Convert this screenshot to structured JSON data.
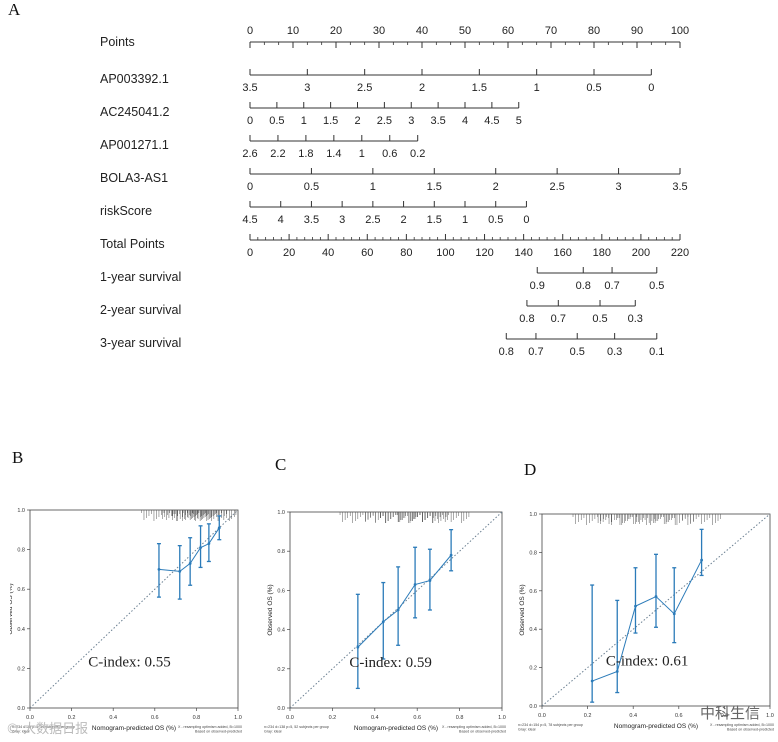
{
  "panels": {
    "a": "A",
    "b": "B",
    "c": "C",
    "d": "D"
  },
  "chart_data": [
    {
      "type": "nomogram",
      "rows": [
        {
          "label": "Points",
          "ticks": [
            "0",
            "10",
            "20",
            "30",
            "40",
            "50",
            "60",
            "70",
            "80",
            "90",
            "100"
          ],
          "values": [
            0,
            10,
            20,
            30,
            40,
            50,
            60,
            70,
            80,
            90,
            100
          ],
          "minor": 2,
          "above": true
        },
        {
          "label": "AP003392.1",
          "ticks": [
            "3.5",
            "3",
            "2.5",
            "2",
            "1.5",
            "1",
            "0.5",
            "0"
          ],
          "values": [
            0,
            13.333,
            26.667,
            40,
            53.333,
            66.667,
            80,
            93.333
          ]
        },
        {
          "label": "AC245041.2",
          "ticks": [
            "0",
            "0.5",
            "1",
            "1.5",
            "2",
            "2.5",
            "3",
            "3.5",
            "4",
            "4.5",
            "5"
          ],
          "values": [
            0,
            6.25,
            12.5,
            18.75,
            25,
            31.25,
            37.5,
            43.75,
            50,
            56.25,
            62.5
          ]
        },
        {
          "label": "AP001271.1",
          "ticks": [
            "2.6",
            "2.2",
            "1.8",
            "1.4",
            "1",
            "0.6",
            "0.2"
          ],
          "values": [
            0,
            6.5,
            13,
            19.5,
            26,
            32.5,
            39
          ]
        },
        {
          "label": "BOLA3-AS1",
          "ticks": [
            "0",
            "0.5",
            "1",
            "1.5",
            "2",
            "2.5",
            "3",
            "3.5"
          ],
          "values": [
            0,
            14.286,
            28.571,
            42.857,
            57.143,
            71.429,
            85.714,
            100
          ]
        },
        {
          "label": "riskScore",
          "ticks": [
            "4.5",
            "4",
            "3.5",
            "3",
            "2.5",
            "2",
            "1.5",
            "1",
            "0.5",
            "0"
          ],
          "values": [
            0,
            7.143,
            14.286,
            21.429,
            28.571,
            35.714,
            42.857,
            50,
            57.143,
            64.286
          ]
        },
        {
          "label": "Total Points",
          "ticks": [
            "0",
            "20",
            "40",
            "60",
            "80",
            "100",
            "120",
            "140",
            "160",
            "180",
            "200",
            "220"
          ],
          "values": [
            0,
            9.091,
            18.182,
            27.273,
            36.364,
            45.455,
            54.545,
            63.636,
            72.727,
            81.818,
            90.909,
            100
          ],
          "minor": 4
        },
        {
          "label": "1-year survival",
          "ticks": [
            "0.9",
            "0.8",
            "0.7",
            "0.5"
          ],
          "values": [
            66.8,
            77.5,
            84.2,
            94.6
          ]
        },
        {
          "label": "2-year survival",
          "ticks": [
            "0.8",
            "0.7",
            "0.5",
            "0.3"
          ],
          "values": [
            64.4,
            71.7,
            81.4,
            89.6
          ]
        },
        {
          "label": "3-year survival",
          "ticks": [
            "0.8",
            "0.7",
            "0.5",
            "0.3",
            "0.1"
          ],
          "values": [
            59.6,
            66.5,
            76.1,
            84.8,
            94.6
          ]
        }
      ]
    },
    {
      "type": "calibration",
      "panel": "B",
      "xlabel": "Nomogram-predicted OS (%)",
      "ylabel": "Observed OS (%)",
      "xlim": [
        0,
        1
      ],
      "ylim": [
        0,
        1
      ],
      "ticks": [
        "0.0",
        "0.2",
        "0.4",
        "0.6",
        "0.8",
        "1.0"
      ],
      "cindex": "C-index:  0.55",
      "footnote_left": "n=234 d=29 p=5, 39 subjects per group",
      "footnote_left2": "Gray: ideal",
      "footnote_right": "X - resampling optimism added, B=1000",
      "footnote_right2": "Based on observed-predicted",
      "points": [
        {
          "x": 0.62,
          "y": 0.7,
          "lo": 0.56,
          "hi": 0.83
        },
        {
          "x": 0.72,
          "y": 0.69,
          "lo": 0.55,
          "hi": 0.82
        },
        {
          "x": 0.77,
          "y": 0.73,
          "lo": 0.62,
          "hi": 0.86
        },
        {
          "x": 0.82,
          "y": 0.81,
          "lo": 0.71,
          "hi": 0.92
        },
        {
          "x": 0.86,
          "y": 0.83,
          "lo": 0.74,
          "hi": 0.93
        },
        {
          "x": 0.91,
          "y": 0.91,
          "lo": 0.85,
          "hi": 0.97
        }
      ]
    },
    {
      "type": "calibration",
      "panel": "C",
      "xlabel": "Nomogram-predicted OS (%)",
      "ylabel": "Observed OS (%)",
      "xlim": [
        0,
        1
      ],
      "ylim": [
        0,
        1
      ],
      "ticks": [
        "0.0",
        "0.2",
        "0.4",
        "0.6",
        "0.8",
        "1.0"
      ],
      "cindex": "C-index:  0.59",
      "footnote_left": "n=234 d=138 p=5, 52 subjects per group",
      "footnote_left2": "Gray: ideal",
      "footnote_right": "X - resampling optimism added, B=1000",
      "footnote_right2": "Based on observed-predicted",
      "points": [
        {
          "x": 0.32,
          "y": 0.31,
          "lo": 0.1,
          "hi": 0.58
        },
        {
          "x": 0.44,
          "y": 0.44,
          "lo": 0.25,
          "hi": 0.64
        },
        {
          "x": 0.51,
          "y": 0.5,
          "lo": 0.32,
          "hi": 0.72
        },
        {
          "x": 0.59,
          "y": 0.63,
          "lo": 0.46,
          "hi": 0.82
        },
        {
          "x": 0.66,
          "y": 0.65,
          "lo": 0.5,
          "hi": 0.81
        },
        {
          "x": 0.76,
          "y": 0.78,
          "lo": 0.7,
          "hi": 0.91
        }
      ]
    },
    {
      "type": "calibration",
      "panel": "D",
      "xlabel": "Nomogram-predicted OS (%)",
      "ylabel": "Observed OS (%)",
      "xlim": [
        0,
        1
      ],
      "ylim": [
        0,
        1
      ],
      "ticks": [
        "0.0",
        "0.2",
        "0.4",
        "0.6",
        "0.8",
        "1.0"
      ],
      "cindex": "C-index:  0.61",
      "footnote_left": "n=234 d=154 p=5, 78 subjects per group",
      "footnote_left2": "Gray: ideal",
      "footnote_right": "X - resampling optimism added, B=1000",
      "footnote_right2": "Based on observed-predicted",
      "points": [
        {
          "x": 0.22,
          "y": 0.13,
          "lo": 0.02,
          "hi": 0.63
        },
        {
          "x": 0.33,
          "y": 0.18,
          "lo": 0.07,
          "hi": 0.55
        },
        {
          "x": 0.41,
          "y": 0.52,
          "lo": 0.38,
          "hi": 0.72
        },
        {
          "x": 0.5,
          "y": 0.57,
          "lo": 0.41,
          "hi": 0.79
        },
        {
          "x": 0.58,
          "y": 0.48,
          "lo": 0.33,
          "hi": 0.72
        },
        {
          "x": 0.7,
          "y": 0.76,
          "lo": 0.68,
          "hi": 0.92
        }
      ]
    }
  ],
  "colors": {
    "axis": "#333333",
    "calibration": "#2b7bb9",
    "ideal": "#6a7f91"
  },
  "watermarks": {
    "left": "© 大数据日报",
    "right": "中科生信"
  }
}
